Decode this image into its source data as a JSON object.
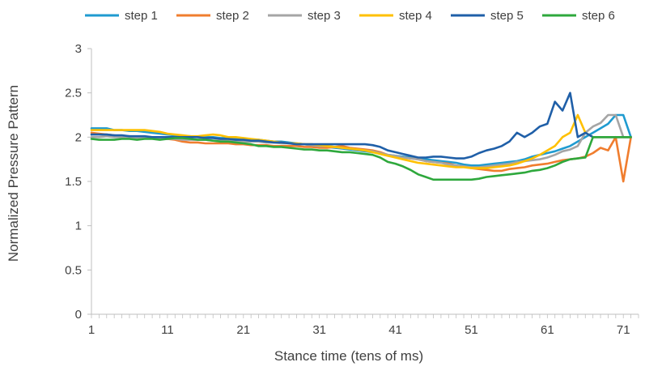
{
  "chart_data": {
    "type": "line",
    "title": "",
    "xlabel": "Stance time (tens of ms)",
    "ylabel": "Normalized Pressure Pattern",
    "xlim": [
      1,
      73
    ],
    "ylim": [
      0,
      3
    ],
    "x_ticks": [
      "1",
      "11",
      "21",
      "31",
      "41",
      "51",
      "61",
      "71"
    ],
    "y_ticks": [
      "0",
      "0.5",
      "1",
      "1.5",
      "2",
      "2.5",
      "3"
    ],
    "grid": false,
    "legend_position": "top",
    "series": [
      {
        "name": "step 1",
        "color": "#1f9bd0",
        "values": [
          2.1,
          2.1,
          2.1,
          2.08,
          2.08,
          2.07,
          2.07,
          2.06,
          2.05,
          2.04,
          2.03,
          2.02,
          2.01,
          2.01,
          2.0,
          2.0,
          2.0,
          1.99,
          1.99,
          1.98,
          1.98,
          1.97,
          1.97,
          1.96,
          1.95,
          1.95,
          1.94,
          1.93,
          1.92,
          1.91,
          1.9,
          1.89,
          1.88,
          1.87,
          1.86,
          1.85,
          1.84,
          1.83,
          1.82,
          1.8,
          1.79,
          1.78,
          1.77,
          1.76,
          1.75,
          1.74,
          1.73,
          1.72,
          1.71,
          1.69,
          1.68,
          1.68,
          1.69,
          1.7,
          1.71,
          1.72,
          1.73,
          1.75,
          1.78,
          1.8,
          1.82,
          1.84,
          1.87,
          1.9,
          1.95,
          2.0,
          2.05,
          2.1,
          2.15,
          2.25,
          2.25,
          2.0
        ]
      },
      {
        "name": "step 2",
        "color": "#f07d2e",
        "values": [
          2.05,
          2.04,
          2.03,
          2.02,
          2.01,
          2.01,
          2.0,
          2.0,
          2.0,
          1.99,
          1.98,
          1.97,
          1.95,
          1.94,
          1.94,
          1.93,
          1.93,
          1.93,
          1.93,
          1.92,
          1.92,
          1.91,
          1.91,
          1.91,
          1.9,
          1.9,
          1.9,
          1.9,
          1.89,
          1.89,
          1.88,
          1.88,
          1.89,
          1.9,
          1.88,
          1.87,
          1.86,
          1.85,
          1.83,
          1.8,
          1.78,
          1.77,
          1.76,
          1.75,
          1.73,
          1.72,
          1.71,
          1.7,
          1.68,
          1.67,
          1.65,
          1.64,
          1.63,
          1.62,
          1.62,
          1.64,
          1.65,
          1.66,
          1.68,
          1.69,
          1.7,
          1.72,
          1.74,
          1.75,
          1.76,
          1.78,
          1.82,
          1.88,
          1.85,
          2.0,
          1.5,
          2.0
        ]
      },
      {
        "name": "step 3",
        "color": "#a5a5a5",
        "values": [
          2.0,
          2.0,
          2.01,
          2.0,
          2.0,
          1.99,
          1.99,
          1.99,
          1.99,
          1.98,
          1.98,
          1.98,
          1.97,
          1.97,
          1.97,
          1.97,
          1.96,
          1.96,
          1.96,
          1.96,
          1.95,
          1.95,
          1.95,
          1.94,
          1.94,
          1.93,
          1.93,
          1.92,
          1.92,
          1.91,
          1.9,
          1.9,
          1.89,
          1.88,
          1.87,
          1.86,
          1.85,
          1.84,
          1.82,
          1.8,
          1.79,
          1.77,
          1.76,
          1.75,
          1.73,
          1.72,
          1.71,
          1.69,
          1.68,
          1.67,
          1.66,
          1.66,
          1.67,
          1.68,
          1.69,
          1.7,
          1.72,
          1.73,
          1.74,
          1.75,
          1.77,
          1.8,
          1.84,
          1.86,
          1.9,
          2.05,
          2.12,
          2.16,
          2.25,
          2.25,
          2.0,
          2.0
        ]
      },
      {
        "name": "step 4",
        "color": "#ffc000",
        "values": [
          2.08,
          2.08,
          2.08,
          2.08,
          2.08,
          2.08,
          2.08,
          2.08,
          2.07,
          2.06,
          2.04,
          2.03,
          2.02,
          2.01,
          2.01,
          2.02,
          2.03,
          2.02,
          2.0,
          2.0,
          1.99,
          1.98,
          1.97,
          1.96,
          1.95,
          1.94,
          1.93,
          1.93,
          1.92,
          1.92,
          1.91,
          1.9,
          1.89,
          1.88,
          1.87,
          1.86,
          1.85,
          1.83,
          1.81,
          1.79,
          1.77,
          1.75,
          1.73,
          1.71,
          1.7,
          1.69,
          1.68,
          1.67,
          1.66,
          1.66,
          1.65,
          1.65,
          1.65,
          1.66,
          1.67,
          1.68,
          1.7,
          1.73,
          1.76,
          1.8,
          1.85,
          1.9,
          2.0,
          2.05,
          2.25,
          2.05,
          2.0,
          2.0,
          2.0,
          2.0,
          2.0,
          2.0
        ]
      },
      {
        "name": "step 5",
        "color": "#1f5fa8",
        "values": [
          2.03,
          2.03,
          2.03,
          2.02,
          2.02,
          2.01,
          2.01,
          2.01,
          2.0,
          2.0,
          2.0,
          2.0,
          2.0,
          2.0,
          2.0,
          1.99,
          1.99,
          1.98,
          1.98,
          1.97,
          1.97,
          1.96,
          1.96,
          1.95,
          1.94,
          1.94,
          1.93,
          1.92,
          1.92,
          1.92,
          1.92,
          1.92,
          1.92,
          1.92,
          1.92,
          1.92,
          1.92,
          1.91,
          1.89,
          1.85,
          1.83,
          1.81,
          1.79,
          1.77,
          1.77,
          1.78,
          1.78,
          1.77,
          1.76,
          1.76,
          1.78,
          1.82,
          1.85,
          1.87,
          1.9,
          1.95,
          2.05,
          2.0,
          2.05,
          2.12,
          2.15,
          2.4,
          2.3,
          2.5,
          2.0,
          2.05,
          2.0,
          2.0,
          2.0,
          2.0,
          2.0,
          2.0
        ]
      },
      {
        "name": "step 6",
        "color": "#2ea83c",
        "values": [
          1.98,
          1.97,
          1.97,
          1.97,
          1.98,
          1.98,
          1.97,
          1.98,
          1.98,
          1.97,
          1.98,
          1.99,
          1.99,
          1.98,
          1.97,
          1.97,
          1.96,
          1.95,
          1.95,
          1.94,
          1.93,
          1.92,
          1.9,
          1.9,
          1.89,
          1.89,
          1.88,
          1.87,
          1.86,
          1.86,
          1.85,
          1.85,
          1.84,
          1.83,
          1.83,
          1.82,
          1.81,
          1.8,
          1.77,
          1.72,
          1.7,
          1.67,
          1.63,
          1.58,
          1.55,
          1.52,
          1.52,
          1.52,
          1.52,
          1.52,
          1.52,
          1.53,
          1.55,
          1.56,
          1.57,
          1.58,
          1.59,
          1.6,
          1.62,
          1.63,
          1.65,
          1.68,
          1.72,
          1.75,
          1.76,
          1.77,
          2.0,
          2.0,
          2.0,
          2.0,
          2.0,
          2.0
        ]
      }
    ]
  }
}
